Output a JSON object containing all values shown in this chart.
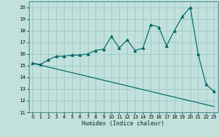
{
  "xlabel": "Humidex (Indice chaleur)",
  "ylabel": "",
  "xlim": [
    -0.5,
    23.5
  ],
  "ylim": [
    11,
    20.5
  ],
  "xticks": [
    0,
    1,
    2,
    3,
    4,
    5,
    6,
    7,
    8,
    9,
    10,
    11,
    12,
    13,
    14,
    15,
    16,
    17,
    18,
    19,
    20,
    21,
    22,
    23
  ],
  "yticks": [
    11,
    12,
    13,
    14,
    15,
    16,
    17,
    18,
    19,
    20
  ],
  "bg_color": "#c2e0dc",
  "grid_color": "#90c4be",
  "line_color": "#006868",
  "line1_x": [
    0,
    1,
    2,
    3,
    4,
    5,
    6,
    7,
    8,
    9,
    10,
    11,
    12,
    13,
    14,
    15,
    16,
    17,
    18,
    19,
    20,
    21,
    22,
    23
  ],
  "line1_y": [
    15.2,
    15.1,
    15.5,
    15.8,
    15.8,
    15.9,
    15.9,
    16.0,
    16.3,
    16.4,
    17.5,
    16.5,
    17.2,
    16.3,
    16.5,
    18.5,
    18.3,
    16.7,
    18.0,
    19.2,
    20.0,
    16.0,
    13.4,
    12.8
  ],
  "line2_x": [
    0,
    23
  ],
  "line2_y": [
    15.2,
    11.5
  ]
}
